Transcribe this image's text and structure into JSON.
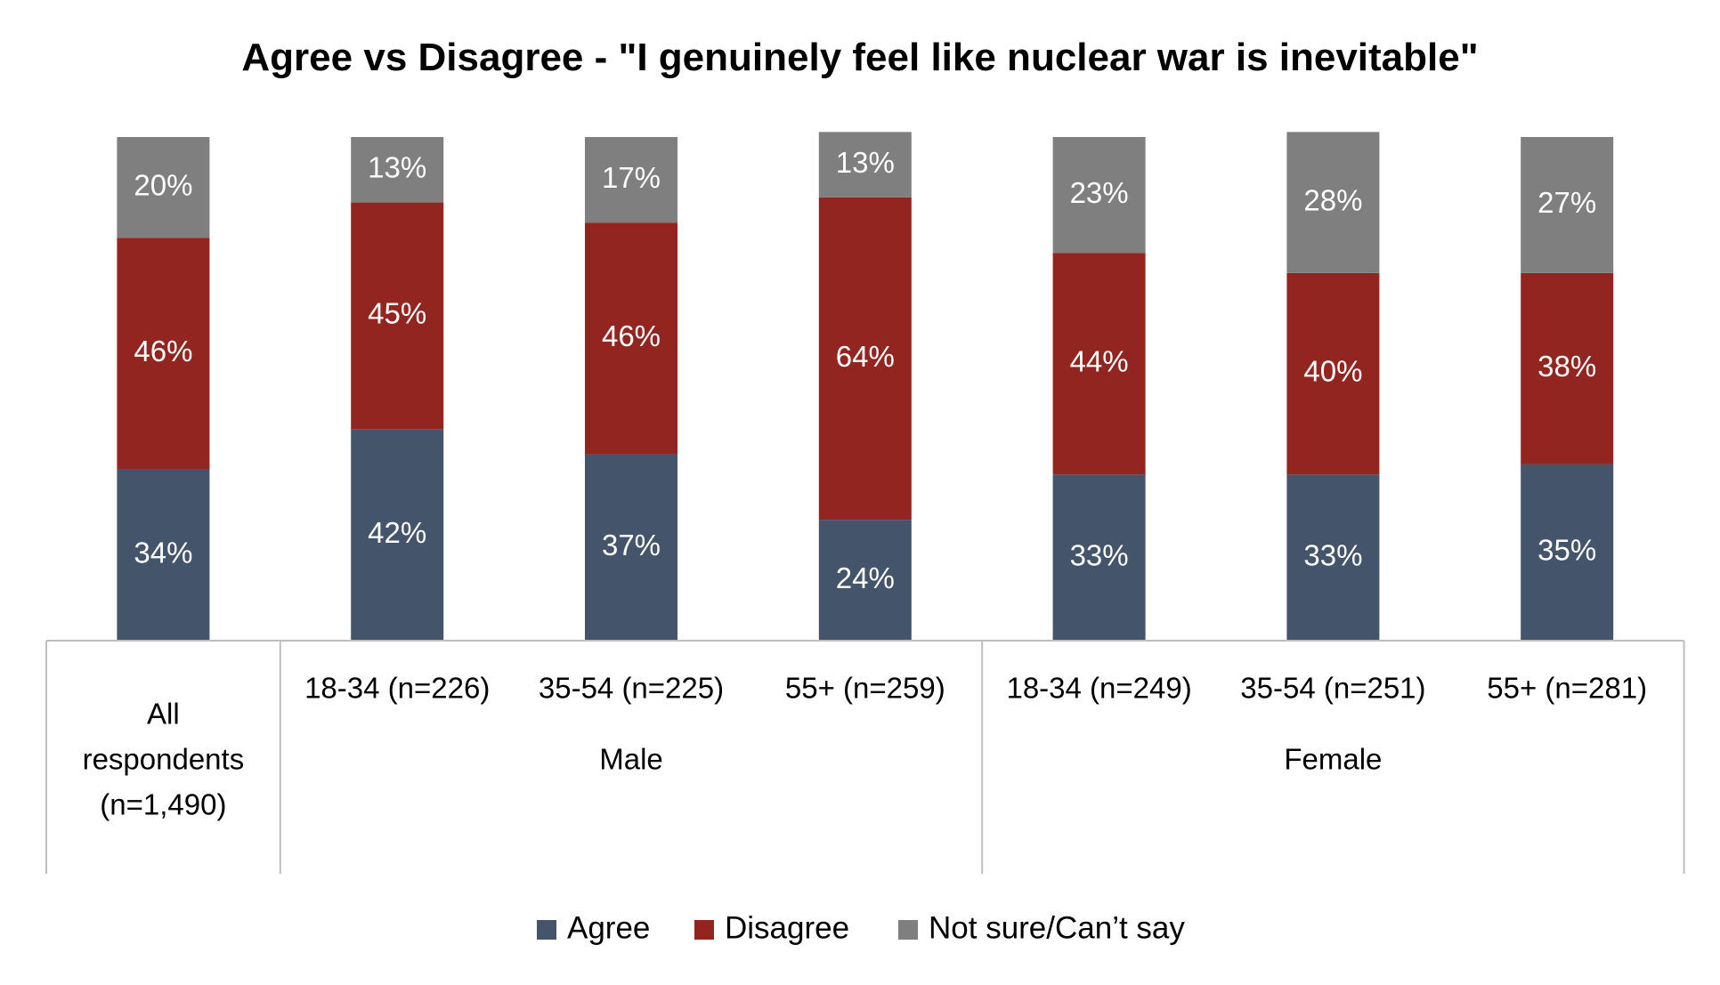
{
  "chart_data": {
    "type": "bar",
    "stacked": true,
    "title": "Agree vs Disagree - \"I genuinely feel like nuclear war is inevitable\"",
    "xlabel": "",
    "ylabel": "",
    "ylim": [
      0,
      100
    ],
    "grid": false,
    "legend_position": "bottom",
    "categories": [
      "All respondents (n=1,490)",
      "18-34 (n=226)",
      "35-54 (n=225)",
      "55+ (n=259)",
      "18-34 (n=249)",
      "35-54 (n=251)",
      "55+ (n=281)"
    ],
    "category_lines": [
      [
        "All",
        "respondents",
        "(n=1,490)"
      ],
      [
        "18-34 (n=226)"
      ],
      [
        "35-54 (n=225)"
      ],
      [
        "55+ (n=259)"
      ],
      [
        "18-34 (n=249)"
      ],
      [
        "35-54 (n=251)"
      ],
      [
        "55+ (n=281)"
      ]
    ],
    "groups": [
      {
        "label": "Male",
        "categories": [
          1,
          2,
          3
        ]
      },
      {
        "label": "Female",
        "categories": [
          4,
          5,
          6
        ]
      }
    ],
    "series": [
      {
        "name": "Agree",
        "color": "#44546A",
        "values": [
          34,
          42,
          37,
          24,
          33,
          33,
          35
        ]
      },
      {
        "name": "Disagree",
        "color": "#922520",
        "values": [
          46,
          45,
          46,
          64,
          44,
          40,
          38
        ]
      },
      {
        "name": "Not sure/Can’t say",
        "color": "#7F7F7F",
        "values": [
          20,
          13,
          17,
          13,
          23,
          28,
          27
        ]
      }
    ],
    "data_label_suffix": "%"
  }
}
